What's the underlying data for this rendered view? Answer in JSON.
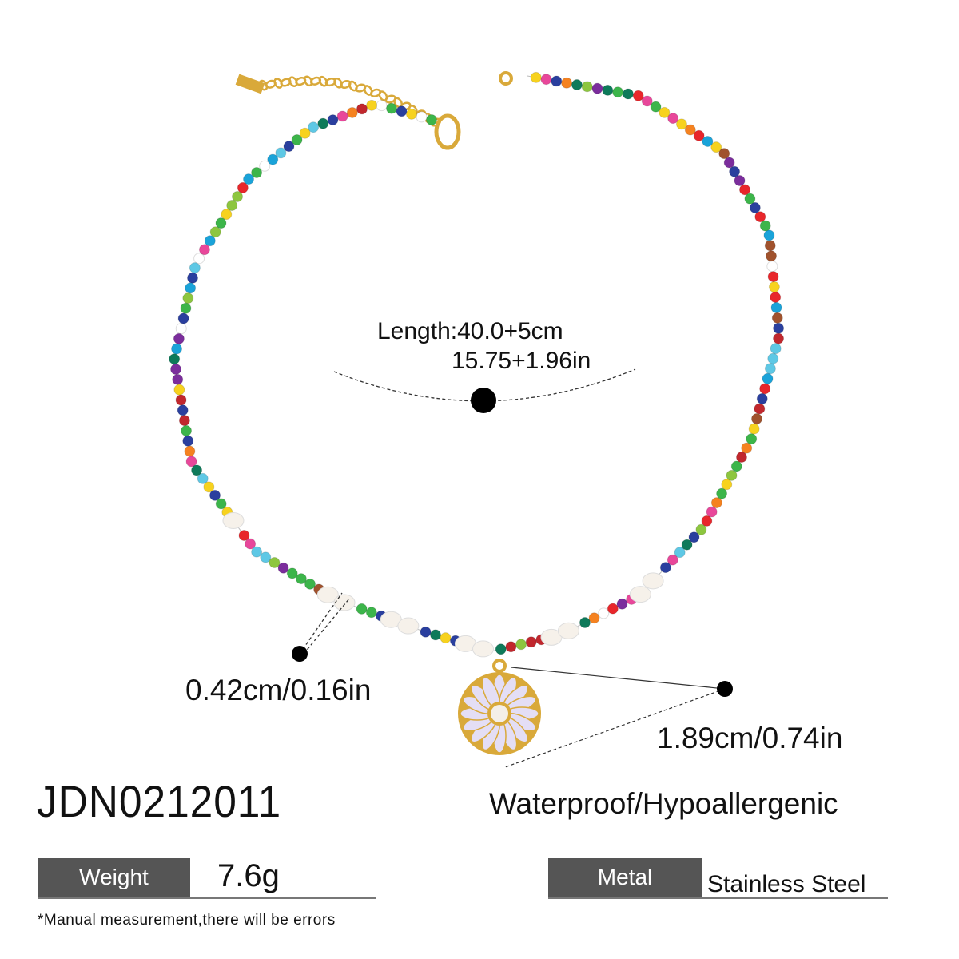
{
  "product": {
    "sku": "JDN0212011",
    "feature": "Waterproof/Hypoallergenic"
  },
  "dimensions": {
    "length_cm": "Length:40.0+5cm",
    "length_in": "15.75+1.96in",
    "bead": "0.42cm/0.16in",
    "pendant": "1.89cm/0.74in"
  },
  "specs": {
    "weight_label": "Weight",
    "weight_value": "7.6g",
    "metal_label": "Metal",
    "metal_value": "Stainless Steel"
  },
  "note": "*Manual measurement,there will be errors",
  "colors": {
    "label_bg": "#555555",
    "gold": "#d9a93a",
    "petal": "#e4def5",
    "beads": [
      "#e8262b",
      "#f7d21e",
      "#1aa3d9",
      "#2a3f9e",
      "#7b2d9c",
      "#e8479a",
      "#3cb54a",
      "#ffffff",
      "#f58220",
      "#5ec8e5",
      "#0e7a5a",
      "#a0522d",
      "#c1272d",
      "#8dc63f"
    ]
  }
}
